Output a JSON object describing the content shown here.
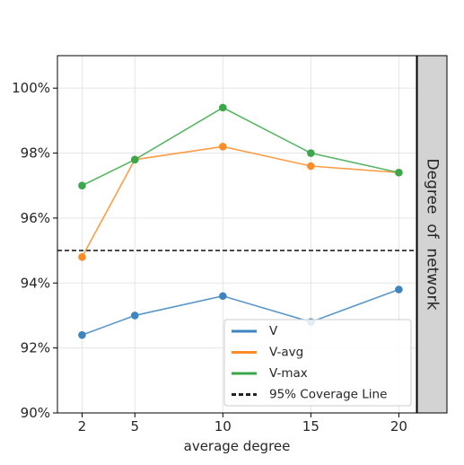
{
  "chart_data": {
    "type": "line",
    "x": [
      2,
      5,
      10,
      15,
      20
    ],
    "xticks": [
      "2",
      "5",
      "10",
      "15",
      "20"
    ],
    "xlabel": "average degree",
    "ylabel": "",
    "ylim": [
      90,
      101
    ],
    "yticks": [
      "90%",
      "92%",
      "94%",
      "96%",
      "98%",
      "100%"
    ],
    "facet_label": "Degree  of  network",
    "grid": true,
    "legend_position": "bottom-right",
    "reference_line": {
      "name": "95% Coverage Line",
      "value": 95,
      "color": "#222222",
      "style": "dashed"
    },
    "series": [
      {
        "name": "V",
        "values": [
          92.4,
          93.0,
          93.6,
          92.8,
          93.8
        ],
        "color": "#3d85c0"
      },
      {
        "name": "V-avg",
        "values": [
          94.8,
          97.8,
          98.2,
          97.6,
          97.4
        ],
        "color": "#ff8c26"
      },
      {
        "name": "V-max",
        "values": [
          97.0,
          97.8,
          99.4,
          98.0,
          97.4
        ],
        "color": "#3aa84a"
      }
    ]
  }
}
